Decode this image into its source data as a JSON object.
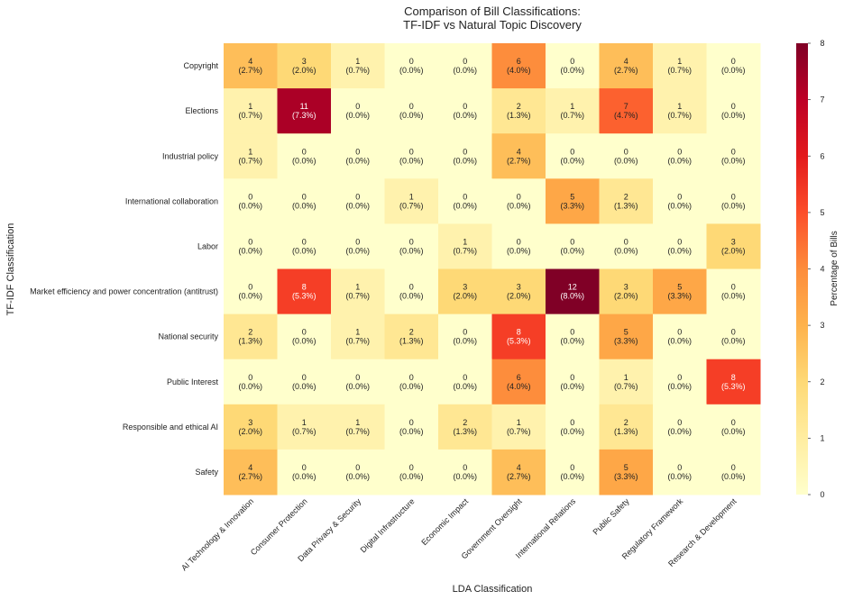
{
  "chart_data": {
    "type": "heatmap",
    "title": "Comparison of Bill Classifications:",
    "subtitle": "TF-IDF vs Natural Topic Discovery",
    "xlabel": "LDA Classification",
    "ylabel": "TF-IDF Classification",
    "colorbar_label": "Percentage of Bills",
    "colorbar_range": [
      0,
      8
    ],
    "colorbar_ticks": [
      "0",
      "1",
      "2",
      "3",
      "4",
      "5",
      "6",
      "7",
      "8"
    ],
    "colormap": "YlOrRd",
    "x_categories": [
      "AI Technology & Innovation",
      "Consumer Protection",
      "Data Privacy & Security",
      "Digital Infrastructure",
      "Economic Impact",
      "Government Oversight",
      "International Relations",
      "Public Safety",
      "Regulatory Framework",
      "Research & Development"
    ],
    "y_categories": [
      "Copyright",
      "Elections",
      "Industrial policy",
      "International collaboration",
      "Labor",
      "Market efficiency and power concentration (antitrust)",
      "National security",
      "Public Interest",
      "Responsible and ethical AI",
      "Safety"
    ],
    "counts": [
      [
        4,
        3,
        1,
        0,
        0,
        6,
        0,
        4,
        1,
        0
      ],
      [
        1,
        11,
        0,
        0,
        0,
        2,
        1,
        7,
        1,
        0
      ],
      [
        1,
        0,
        0,
        0,
        0,
        4,
        0,
        0,
        0,
        0
      ],
      [
        0,
        0,
        0,
        1,
        0,
        0,
        5,
        2,
        0,
        0
      ],
      [
        0,
        0,
        0,
        0,
        1,
        0,
        0,
        0,
        0,
        3
      ],
      [
        0,
        8,
        1,
        0,
        3,
        3,
        12,
        3,
        5,
        0
      ],
      [
        2,
        0,
        1,
        2,
        0,
        8,
        0,
        5,
        0,
        0
      ],
      [
        0,
        0,
        0,
        0,
        0,
        6,
        0,
        1,
        0,
        8
      ],
      [
        3,
        1,
        1,
        0,
        2,
        1,
        0,
        2,
        0,
        0
      ],
      [
        4,
        0,
        0,
        0,
        0,
        4,
        0,
        5,
        0,
        0
      ]
    ],
    "percent_labels": [
      [
        "(2.7%)",
        "(2.0%)",
        "(0.7%)",
        "(0.0%)",
        "(0.0%)",
        "(4.0%)",
        "(0.0%)",
        "(2.7%)",
        "(0.7%)",
        "(0.0%)"
      ],
      [
        "(0.7%)",
        "(7.3%)",
        "(0.0%)",
        "(0.0%)",
        "(0.0%)",
        "(1.3%)",
        "(0.7%)",
        "(4.7%)",
        "(0.7%)",
        "(0.0%)"
      ],
      [
        "(0.7%)",
        "(0.0%)",
        "(0.0%)",
        "(0.0%)",
        "(0.0%)",
        "(2.7%)",
        "(0.0%)",
        "(0.0%)",
        "(0.0%)",
        "(0.0%)"
      ],
      [
        "(0.0%)",
        "(0.0%)",
        "(0.0%)",
        "(0.7%)",
        "(0.0%)",
        "(0.0%)",
        "(3.3%)",
        "(1.3%)",
        "(0.0%)",
        "(0.0%)"
      ],
      [
        "(0.0%)",
        "(0.0%)",
        "(0.0%)",
        "(0.0%)",
        "(0.7%)",
        "(0.0%)",
        "(0.0%)",
        "(0.0%)",
        "(0.0%)",
        "(2.0%)"
      ],
      [
        "(0.0%)",
        "(5.3%)",
        "(0.7%)",
        "(0.0%)",
        "(2.0%)",
        "(2.0%)",
        "(8.0%)",
        "(2.0%)",
        "(3.3%)",
        "(0.0%)"
      ],
      [
        "(1.3%)",
        "(0.0%)",
        "(0.7%)",
        "(1.3%)",
        "(0.0%)",
        "(5.3%)",
        "(0.0%)",
        "(3.3%)",
        "(0.0%)",
        "(0.0%)"
      ],
      [
        "(0.0%)",
        "(0.0%)",
        "(0.0%)",
        "(0.0%)",
        "(0.0%)",
        "(4.0%)",
        "(0.0%)",
        "(0.7%)",
        "(0.0%)",
        "(5.3%)"
      ],
      [
        "(2.0%)",
        "(0.7%)",
        "(0.7%)",
        "(0.0%)",
        "(1.3%)",
        "(0.7%)",
        "(0.0%)",
        "(1.3%)",
        "(0.0%)",
        "(0.0%)"
      ],
      [
        "(2.7%)",
        "(0.0%)",
        "(0.0%)",
        "(0.0%)",
        "(0.0%)",
        "(2.7%)",
        "(0.0%)",
        "(3.3%)",
        "(0.0%)",
        "(0.0%)"
      ]
    ],
    "percentages": [
      [
        2.7,
        2.0,
        0.7,
        0.0,
        0.0,
        4.0,
        0.0,
        2.7,
        0.7,
        0.0
      ],
      [
        0.7,
        7.3,
        0.0,
        0.0,
        0.0,
        1.3,
        0.7,
        4.7,
        0.7,
        0.0
      ],
      [
        0.7,
        0.0,
        0.0,
        0.0,
        0.0,
        2.7,
        0.0,
        0.0,
        0.0,
        0.0
      ],
      [
        0.0,
        0.0,
        0.0,
        0.7,
        0.0,
        0.0,
        3.3,
        1.3,
        0.0,
        0.0
      ],
      [
        0.0,
        0.0,
        0.0,
        0.0,
        0.7,
        0.0,
        0.0,
        0.0,
        0.0,
        2.0
      ],
      [
        0.0,
        5.3,
        0.7,
        0.0,
        2.0,
        2.0,
        8.0,
        2.0,
        3.3,
        0.0
      ],
      [
        1.3,
        0.0,
        0.7,
        1.3,
        0.0,
        5.3,
        0.0,
        3.3,
        0.0,
        0.0
      ],
      [
        0.0,
        0.0,
        0.0,
        0.0,
        0.0,
        4.0,
        0.0,
        0.7,
        0.0,
        5.3
      ],
      [
        2.0,
        0.7,
        0.7,
        0.0,
        1.3,
        0.7,
        0.0,
        1.3,
        0.0,
        0.0
      ],
      [
        2.7,
        0.0,
        0.0,
        0.0,
        0.0,
        2.7,
        0.0,
        3.3,
        0.0,
        0.0
      ]
    ]
  }
}
